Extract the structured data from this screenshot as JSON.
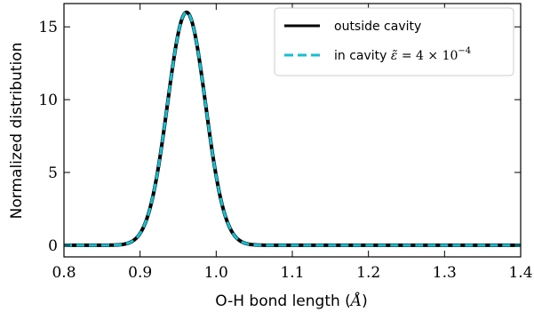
{
  "chart_data": {
    "type": "line",
    "xlabel": "O-H bond length (",
    "xlabel_unit": "Å",
    "xlabel_close": ")",
    "ylabel": "Normalized distribution",
    "xlim": [
      0.8,
      1.4
    ],
    "ylim": [
      -0.8,
      16.6
    ],
    "xticks": [
      0.8,
      0.9,
      1.0,
      1.1,
      1.2,
      1.3,
      1.4
    ],
    "xtick_labels": [
      "0.8",
      "0.9",
      "1.0",
      "1.1",
      "1.2",
      "1.3",
      "1.4"
    ],
    "yticks": [
      0,
      5,
      10,
      15
    ],
    "ytick_labels": [
      "0",
      "5",
      "10",
      "15"
    ],
    "grid": false,
    "legend_position": "top-right",
    "series": [
      {
        "name": "outside cavity",
        "color": "#000000",
        "style": "solid",
        "shape": "gaussian",
        "mean": 0.961,
        "peak": 16.0,
        "sigma": 0.025
      },
      {
        "name": "in cavity ε̃ = 4 × 10⁻⁴",
        "legend_text": "in cavity ",
        "legend_symbol": "ε̃",
        "legend_eq": " = 4 × 10",
        "legend_exp": "−4",
        "color": "#17becf",
        "style": "dashed",
        "shape": "gaussian",
        "mean": 0.961,
        "peak": 16.0,
        "sigma": 0.025
      }
    ]
  }
}
